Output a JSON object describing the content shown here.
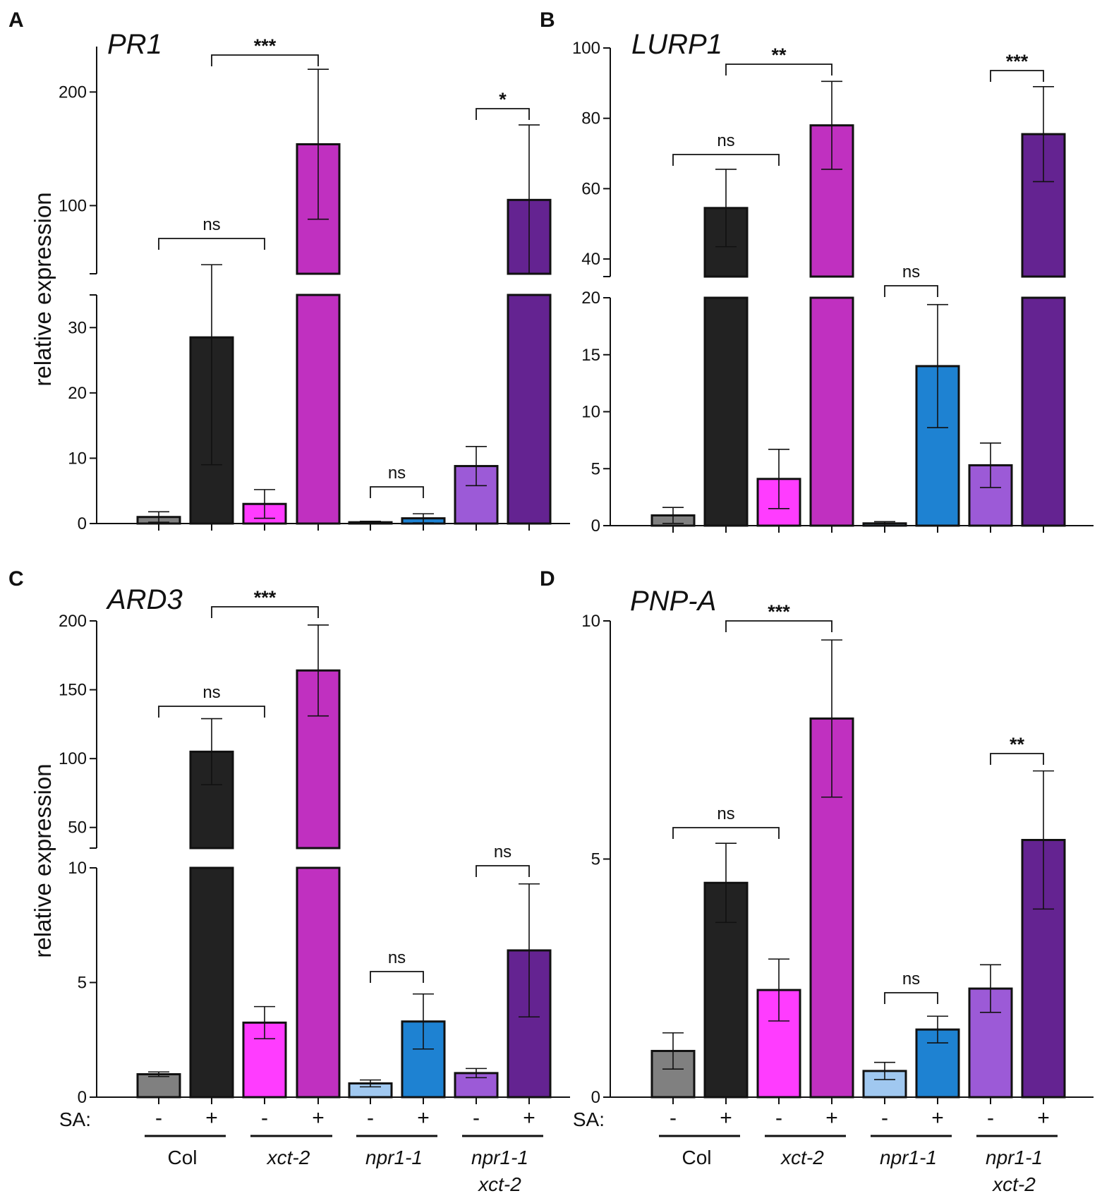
{
  "chart_data": [
    {
      "panel": "A",
      "title": "PR1",
      "type": "bar",
      "ylabel": "relative expression",
      "broken_axis": true,
      "lower_range": [
        0,
        35
      ],
      "upper_range": [
        40,
        240
      ],
      "lower_ticks": [
        0,
        10,
        20,
        30
      ],
      "upper_ticks": [
        100,
        200
      ],
      "bars": [
        {
          "group": "Col",
          "sa": "-",
          "value": 1.0,
          "err": 0.8,
          "color": "#808080"
        },
        {
          "group": "Col",
          "sa": "+",
          "value": 28.5,
          "err": 19.5,
          "color": "#222222"
        },
        {
          "group": "xct-2",
          "sa": "-",
          "value": 3.0,
          "err": 2.2,
          "color": "#ff3cff"
        },
        {
          "group": "xct-2",
          "sa": "+",
          "value": 154,
          "err": 66,
          "color": "#c030c0"
        },
        {
          "group": "npr1-1",
          "sa": "-",
          "value": 0.2,
          "err": 0.15,
          "color": "#a0c8f0"
        },
        {
          "group": "npr1-1",
          "sa": "+",
          "value": 0.8,
          "err": 0.7,
          "color": "#1e82d2"
        },
        {
          "group": "npr1-1 xct-2",
          "sa": "-",
          "value": 8.8,
          "err": 3.0,
          "color": "#9c5ad7"
        },
        {
          "group": "npr1-1 xct-2",
          "sa": "+",
          "value": 105,
          "err": 66,
          "color": "#642391"
        }
      ],
      "comparisons": [
        {
          "from": 0,
          "to": 2,
          "label": "ns"
        },
        {
          "from": 1,
          "to": 3,
          "label": "***"
        },
        {
          "from": 4,
          "to": 5,
          "label": "ns"
        },
        {
          "from": 6,
          "to": 7,
          "label": "*"
        }
      ]
    },
    {
      "panel": "B",
      "title": "LURP1",
      "type": "bar",
      "ylabel": "",
      "broken_axis": true,
      "lower_range": [
        0,
        20
      ],
      "upper_range": [
        35,
        100
      ],
      "lower_ticks": [
        0,
        5,
        10,
        15,
        20
      ],
      "upper_ticks": [
        40,
        60,
        80,
        100
      ],
      "bars": [
        {
          "group": "Col",
          "sa": "-",
          "value": 0.9,
          "err": 0.7,
          "color": "#808080"
        },
        {
          "group": "Col",
          "sa": "+",
          "value": 54.5,
          "err": 11,
          "color": "#222222"
        },
        {
          "group": "xct-2",
          "sa": "-",
          "value": 4.1,
          "err": 2.6,
          "color": "#ff3cff"
        },
        {
          "group": "xct-2",
          "sa": "+",
          "value": 78,
          "err": 12.5,
          "color": "#c030c0"
        },
        {
          "group": "npr1-1",
          "sa": "-",
          "value": 0.2,
          "err": 0.15,
          "color": "#a0c8f0"
        },
        {
          "group": "npr1-1",
          "sa": "+",
          "value": 14,
          "err": 5.4,
          "color": "#1e82d2"
        },
        {
          "group": "npr1-1 xct-2",
          "sa": "-",
          "value": 5.3,
          "err": 1.95,
          "color": "#9c5ad7"
        },
        {
          "group": "npr1-1 xct-2",
          "sa": "+",
          "value": 75.5,
          "err": 13.5,
          "color": "#642391"
        }
      ],
      "comparisons": [
        {
          "from": 0,
          "to": 2,
          "label": "ns"
        },
        {
          "from": 1,
          "to": 3,
          "label": "**"
        },
        {
          "from": 4,
          "to": 5,
          "label": "ns"
        },
        {
          "from": 6,
          "to": 7,
          "label": "***"
        }
      ]
    },
    {
      "panel": "C",
      "title": "ARD3",
      "type": "bar",
      "ylabel": "relative expression",
      "broken_axis": true,
      "lower_range": [
        0,
        10
      ],
      "upper_range": [
        35,
        200
      ],
      "lower_ticks": [
        0,
        5,
        10
      ],
      "upper_ticks": [
        50,
        100,
        150,
        200
      ],
      "bars": [
        {
          "group": "Col",
          "sa": "-",
          "value": 1.0,
          "err": 0.1,
          "color": "#808080"
        },
        {
          "group": "Col",
          "sa": "+",
          "value": 105,
          "err": 24,
          "color": "#222222"
        },
        {
          "group": "xct-2",
          "sa": "-",
          "value": 3.25,
          "err": 0.7,
          "color": "#ff3cff"
        },
        {
          "group": "xct-2",
          "sa": "+",
          "value": 164,
          "err": 33,
          "color": "#c030c0"
        },
        {
          "group": "npr1-1",
          "sa": "-",
          "value": 0.6,
          "err": 0.15,
          "color": "#a0c8f0"
        },
        {
          "group": "npr1-1",
          "sa": "+",
          "value": 3.3,
          "err": 1.2,
          "color": "#1e82d2"
        },
        {
          "group": "npr1-1 xct-2",
          "sa": "-",
          "value": 1.05,
          "err": 0.2,
          "color": "#9c5ad7"
        },
        {
          "group": "npr1-1 xct-2",
          "sa": "+",
          "value": 6.4,
          "err": 2.9,
          "color": "#642391"
        }
      ],
      "comparisons": [
        {
          "from": 0,
          "to": 2,
          "label": "ns"
        },
        {
          "from": 1,
          "to": 3,
          "label": "***"
        },
        {
          "from": 4,
          "to": 5,
          "label": "ns"
        },
        {
          "from": 6,
          "to": 7,
          "label": "ns"
        }
      ]
    },
    {
      "panel": "D",
      "title": "PNP-A",
      "type": "bar",
      "ylabel": "",
      "broken_axis": false,
      "lower_range": [
        0,
        10
      ],
      "lower_ticks": [
        0,
        5,
        10
      ],
      "bars": [
        {
          "group": "Col",
          "sa": "-",
          "value": 0.97,
          "err": 0.38,
          "color": "#808080"
        },
        {
          "group": "Col",
          "sa": "+",
          "value": 4.5,
          "err": 0.83,
          "color": "#222222"
        },
        {
          "group": "xct-2",
          "sa": "-",
          "value": 2.25,
          "err": 0.65,
          "color": "#ff3cff"
        },
        {
          "group": "xct-2",
          "sa": "+",
          "value": 7.95,
          "err": 1.65,
          "color": "#c030c0"
        },
        {
          "group": "npr1-1",
          "sa": "-",
          "value": 0.55,
          "err": 0.18,
          "color": "#a0c8f0"
        },
        {
          "group": "npr1-1",
          "sa": "+",
          "value": 1.42,
          "err": 0.28,
          "color": "#1e82d2"
        },
        {
          "group": "npr1-1 xct-2",
          "sa": "-",
          "value": 2.28,
          "err": 0.5,
          "color": "#9c5ad7"
        },
        {
          "group": "npr1-1 xct-2",
          "sa": "+",
          "value": 5.4,
          "err": 1.45,
          "color": "#642391"
        }
      ],
      "comparisons": [
        {
          "from": 0,
          "to": 2,
          "label": "ns"
        },
        {
          "from": 1,
          "to": 3,
          "label": "***"
        },
        {
          "from": 4,
          "to": 5,
          "label": "ns"
        },
        {
          "from": 6,
          "to": 7,
          "label": "**"
        }
      ]
    }
  ],
  "xaxis": {
    "sa_label": "SA:",
    "minus": "-",
    "plus": "+",
    "groups": [
      {
        "lines": [
          "Col"
        ],
        "italic": false
      },
      {
        "lines": [
          "xct-2"
        ],
        "italic": true
      },
      {
        "lines": [
          "npr1-1"
        ],
        "italic": true
      },
      {
        "lines": [
          "npr1-1",
          "xct-2"
        ],
        "italic": true
      }
    ]
  }
}
